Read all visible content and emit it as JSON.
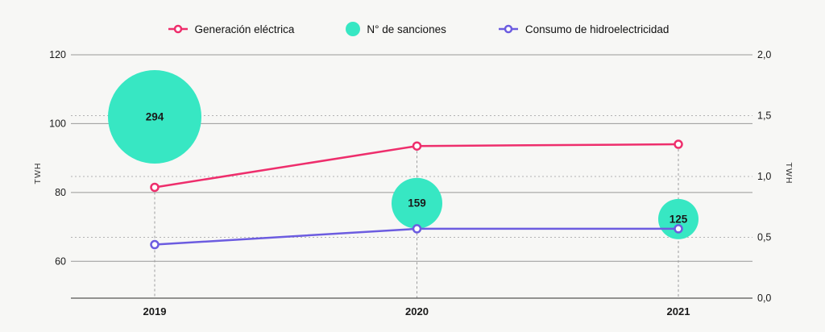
{
  "colors": {
    "background": "#F7F7F5",
    "pink": "#EE2E6C",
    "purple": "#6C5CE0",
    "teal": "#37E7C3",
    "gridline": "#989898",
    "dotted_gridline": "#B3B3B3",
    "guide_dashed": "#9E9E9E",
    "axis_line": "#555555",
    "text": "#1A1A1A"
  },
  "legend": {
    "items": [
      {
        "label": "Generación eléctrica",
        "type": "line-marker",
        "color_key": "pink"
      },
      {
        "label": "N° de sanciones",
        "type": "filled-circle",
        "color_key": "teal"
      },
      {
        "label": "Consumo de hidroelectricidad",
        "type": "line-marker",
        "color_key": "purple"
      }
    ]
  },
  "chart_data": {
    "type": "combo-line-bubble",
    "categories": [
      "2019",
      "2020",
      "2021"
    ],
    "series": [
      {
        "name": "Generación eléctrica",
        "type": "line",
        "axis": "left",
        "color_key": "pink",
        "values": [
          81.5,
          93.5,
          94
        ]
      },
      {
        "name": "Consumo de hidroelectricidad",
        "type": "line",
        "axis": "right",
        "color_key": "purple",
        "values": [
          0.44,
          0.57,
          0.57
        ]
      },
      {
        "name": "N° de sanciones",
        "type": "bubble",
        "color_key": "teal",
        "values": [
          294,
          159,
          125
        ],
        "labels": [
          "294",
          "159",
          "125"
        ],
        "anchor_right_axis": [
          1.49,
          0.78,
          0.65
        ],
        "radius_px": [
          58,
          31.5,
          25
        ]
      }
    ],
    "left_axis": {
      "title": "TWH",
      "ticks": [
        120,
        100,
        80,
        60
      ],
      "min": 49.3,
      "max": 120
    },
    "right_axis": {
      "title": "TWH",
      "ticks": [
        "2,0",
        "1,5",
        "1,0",
        "0,5",
        "0,0"
      ],
      "tick_values": [
        2.0,
        1.5,
        1.0,
        0.5,
        0.0
      ],
      "min": 0.0,
      "max": 2.0
    },
    "grid": {
      "solid_lines_for_left_ticks": true,
      "dotted_lines_for_right_ticks": [
        1.5,
        1.0,
        0.5
      ],
      "vertical_dashed_guides_at_categories": true,
      "legend_position": "top-center"
    }
  }
}
